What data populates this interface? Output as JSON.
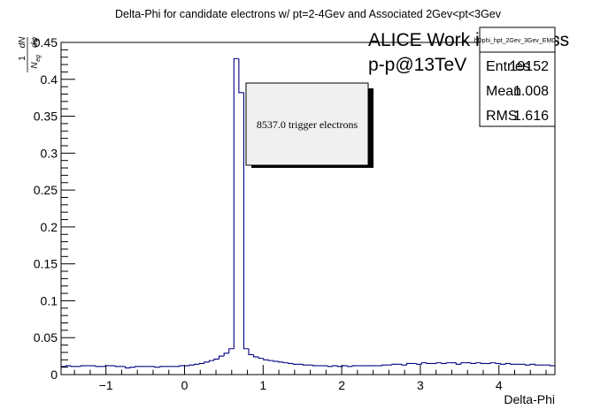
{
  "chart_data": {
    "type": "histogram",
    "title": "Delta-Phi for candidate electrons w/ pt=2-4Gev and Associated 2Gev<pt<3Gev",
    "xlabel": "Delta-Phi",
    "ylabel_prefix": "1",
    "ylabel_num": "dN",
    "ylabel_den_main": "N",
    "ylabel_den_sub": "eg",
    "ylabel_den_tail": "dφ",
    "xlim": [
      -1.5708,
      4.7124
    ],
    "ylim": [
      0,
      0.45
    ],
    "xticks": [
      -1,
      0,
      1,
      2,
      3,
      4
    ],
    "xtick_labels": [
      "−1",
      "0",
      "1",
      "2",
      "3",
      "4"
    ],
    "yticks": [
      0,
      0.05,
      0.1,
      0.15,
      0.2,
      0.25,
      0.3,
      0.35,
      0.4,
      0.45
    ],
    "ytick_labels": [
      "0",
      "0.05",
      "0.1",
      "0.15",
      "0.2",
      "0.25",
      "0.3",
      "0.35",
      "0.4",
      "0.45"
    ],
    "bin_width": 0.0628,
    "values": [
      0.011,
      0.012,
      0.011,
      0.011,
      0.012,
      0.012,
      0.012,
      0.011,
      0.011,
      0.012,
      0.012,
      0.011,
      0.011,
      0.009,
      0.01,
      0.011,
      0.011,
      0.011,
      0.011,
      0.01,
      0.011,
      0.011,
      0.011,
      0.011,
      0.012,
      0.012,
      0.013,
      0.014,
      0.015,
      0.017,
      0.019,
      0.021,
      0.025,
      0.029,
      0.035,
      0.428,
      0.382,
      0.035,
      0.027,
      0.024,
      0.022,
      0.02,
      0.019,
      0.018,
      0.017,
      0.016,
      0.015,
      0.014,
      0.014,
      0.013,
      0.013,
      0.012,
      0.012,
      0.012,
      0.011,
      0.012,
      0.011,
      0.012,
      0.011,
      0.012,
      0.012,
      0.012,
      0.012,
      0.012,
      0.012,
      0.013,
      0.013,
      0.014,
      0.014,
      0.013,
      0.015,
      0.015,
      0.014,
      0.016,
      0.015,
      0.015,
      0.016,
      0.015,
      0.016,
      0.016,
      0.014,
      0.016,
      0.016,
      0.015,
      0.016,
      0.015,
      0.015,
      0.016,
      0.015,
      0.014,
      0.015,
      0.014,
      0.014,
      0.014,
      0.013,
      0.014,
      0.013,
      0.013,
      0.013,
      0.012
    ],
    "line_color": "#000080"
  },
  "overlay": {
    "header_line1": "ALICE Work in Progress",
    "header_line2": "p-p@13TeV",
    "annotation": "8537.0 trigger electrons"
  },
  "stats_box": {
    "name": "hDphi_hpt_2Gev_3Gev_EMC7",
    "rows": [
      {
        "label": "Entries",
        "value": "19152"
      },
      {
        "label": "Mean",
        "value": "1.008"
      },
      {
        "label": "RMS",
        "value": "1.616"
      }
    ]
  }
}
